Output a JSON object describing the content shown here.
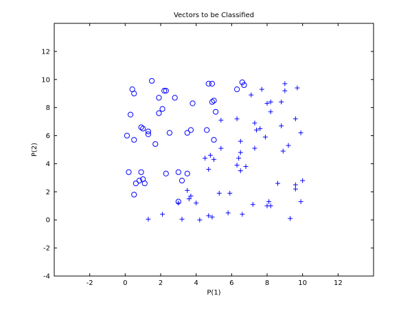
{
  "chart_data": {
    "type": "scatter",
    "title": "Vectors to be Classified",
    "xlabel": "P(1)",
    "ylabel": "P(2)",
    "xlim": [
      -4,
      14
    ],
    "ylim": [
      -4,
      14
    ],
    "xticks": [
      -2,
      0,
      2,
      4,
      6,
      8,
      10,
      12
    ],
    "yticks": [
      -4,
      -2,
      0,
      2,
      4,
      6,
      8,
      10,
      12
    ],
    "grid": false,
    "color": "#0000ff",
    "series": [
      {
        "marker": "circle",
        "points": [
          [
            0.4,
            9.3
          ],
          [
            0.5,
            9.0
          ],
          [
            1.5,
            9.9
          ],
          [
            2.2,
            9.2
          ],
          [
            2.3,
            9.2
          ],
          [
            1.9,
            8.7
          ],
          [
            2.8,
            8.7
          ],
          [
            2.1,
            7.9
          ],
          [
            1.9,
            7.6
          ],
          [
            0.3,
            7.5
          ],
          [
            3.8,
            8.3
          ],
          [
            0.9,
            6.6
          ],
          [
            1.0,
            6.5
          ],
          [
            1.3,
            6.3
          ],
          [
            1.3,
            6.1
          ],
          [
            0.1,
            6.0
          ],
          [
            0.5,
            5.7
          ],
          [
            1.7,
            5.4
          ],
          [
            2.5,
            6.2
          ],
          [
            3.5,
            6.2
          ],
          [
            3.7,
            6.4
          ],
          [
            0.2,
            3.4
          ],
          [
            0.9,
            3.4
          ],
          [
            1.0,
            2.9
          ],
          [
            0.8,
            2.8
          ],
          [
            0.6,
            2.6
          ],
          [
            1.1,
            2.6
          ],
          [
            0.5,
            1.8
          ],
          [
            2.3,
            3.3
          ],
          [
            3.0,
            3.4
          ],
          [
            3.2,
            2.8
          ],
          [
            3.5,
            3.3
          ],
          [
            3.0,
            1.3
          ],
          [
            4.7,
            9.7
          ],
          [
            4.9,
            9.7
          ],
          [
            4.9,
            8.4
          ],
          [
            5.0,
            8.5
          ],
          [
            5.1,
            7.7
          ],
          [
            4.6,
            6.4
          ],
          [
            5.0,
            5.7
          ],
          [
            6.3,
            9.3
          ],
          [
            6.6,
            9.8
          ],
          [
            6.7,
            9.6
          ]
        ]
      },
      {
        "marker": "plus",
        "points": [
          [
            9.0,
            9.7
          ],
          [
            9.7,
            9.4
          ],
          [
            7.1,
            8.9
          ],
          [
            7.7,
            9.3
          ],
          [
            9.0,
            9.2
          ],
          [
            8.0,
            8.3
          ],
          [
            8.2,
            8.4
          ],
          [
            8.8,
            8.4
          ],
          [
            8.2,
            7.7
          ],
          [
            5.4,
            7.1
          ],
          [
            6.3,
            7.2
          ],
          [
            7.3,
            6.9
          ],
          [
            9.6,
            7.2
          ],
          [
            7.4,
            6.4
          ],
          [
            7.6,
            6.5
          ],
          [
            8.8,
            6.7
          ],
          [
            9.9,
            6.2
          ],
          [
            7.9,
            5.9
          ],
          [
            6.5,
            5.6
          ],
          [
            5.4,
            5.1
          ],
          [
            7.3,
            5.1
          ],
          [
            8.9,
            4.9
          ],
          [
            9.2,
            5.3
          ],
          [
            4.5,
            4.4
          ],
          [
            4.8,
            4.6
          ],
          [
            5.0,
            4.3
          ],
          [
            6.4,
            4.4
          ],
          [
            6.5,
            4.8
          ],
          [
            6.3,
            3.9
          ],
          [
            6.5,
            3.5
          ],
          [
            6.8,
            3.8
          ],
          [
            4.7,
            3.6
          ],
          [
            8.6,
            2.6
          ],
          [
            9.6,
            2.5
          ],
          [
            10.0,
            2.8
          ],
          [
            9.6,
            2.2
          ],
          [
            3.5,
            2.1
          ],
          [
            3.6,
            1.5
          ],
          [
            3.7,
            1.7
          ],
          [
            5.3,
            1.9
          ],
          [
            5.9,
            1.9
          ],
          [
            4.0,
            1.2
          ],
          [
            3.0,
            1.2
          ],
          [
            7.2,
            1.1
          ],
          [
            8.1,
            1.3
          ],
          [
            8.0,
            1.0
          ],
          [
            8.2,
            1.0
          ],
          [
            9.9,
            1.3
          ],
          [
            2.1,
            0.4
          ],
          [
            4.7,
            0.3
          ],
          [
            4.9,
            0.2
          ],
          [
            5.8,
            0.5
          ],
          [
            6.6,
            0.4
          ],
          [
            1.3,
            0.05
          ],
          [
            3.2,
            0.05
          ],
          [
            4.2,
            0.0
          ],
          [
            9.3,
            0.1
          ]
        ]
      }
    ]
  }
}
